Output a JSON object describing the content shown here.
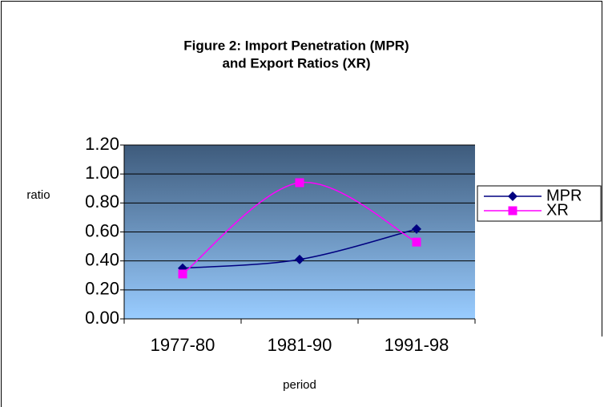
{
  "chart_data": {
    "type": "line",
    "smooth": true,
    "title": [
      "Figure 2: Import Penetration  (MPR)",
      "and  Export Ratios (XR)"
    ],
    "y_label": "ratio",
    "x_label": "period",
    "categories": [
      "1977-80",
      "1981-90",
      "1991-98"
    ],
    "series": [
      {
        "name": "MPR",
        "color": "#000080",
        "marker": "diamond",
        "values": [
          0.35,
          0.41,
          0.62
        ]
      },
      {
        "name": "XR",
        "color": "#ff00ff",
        "marker": "square",
        "values": [
          0.31,
          0.94,
          0.53
        ]
      }
    ],
    "ylim": [
      0,
      1.2
    ],
    "yticks": [
      {
        "value": 0,
        "label": "0.00"
      },
      {
        "value": 0.2,
        "label": "0.20"
      },
      {
        "value": 0.4,
        "label": "0.40"
      },
      {
        "value": 0.6,
        "label": "0.60"
      },
      {
        "value": 0.8,
        "label": "0.80"
      },
      {
        "value": 1.0,
        "label": "1.00"
      },
      {
        "value": 1.2,
        "label": "1.20"
      }
    ],
    "grid": true,
    "legend": "right"
  }
}
